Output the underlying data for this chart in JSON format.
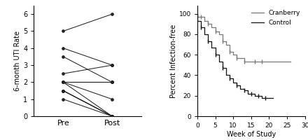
{
  "left_chart": {
    "ylabel": "6-month UTI Rate",
    "xlabel_pre": "Pre",
    "xlabel_post": "Post",
    "ylim": [
      0,
      6.5
    ],
    "yticks": [
      0,
      1,
      2,
      3,
      4,
      5,
      6
    ],
    "pairs": [
      [
        5.0,
        6.0
      ],
      [
        4.0,
        3.0
      ],
      [
        3.5,
        2.0
      ],
      [
        2.5,
        3.0
      ],
      [
        2.0,
        2.0
      ],
      [
        2.0,
        2.0
      ],
      [
        2.0,
        2.0
      ],
      [
        2.0,
        1.0
      ],
      [
        2.0,
        0.0
      ],
      [
        1.5,
        0.0
      ],
      [
        1.5,
        0.0
      ],
      [
        1.5,
        0.0
      ],
      [
        1.0,
        0.0
      ]
    ],
    "line_color": "#222222",
    "marker_color": "#222222"
  },
  "right_chart": {
    "ylabel": "Percent Infection-free",
    "xlabel": "Week of Study",
    "ylim": [
      0,
      108
    ],
    "yticks": [
      0,
      20,
      40,
      60,
      80,
      100
    ],
    "xlim": [
      0,
      30
    ],
    "xticks": [
      0,
      5,
      10,
      15,
      20,
      25,
      30
    ],
    "cranberry_x": [
      0,
      1,
      2,
      3,
      4,
      5,
      6,
      7,
      8,
      9,
      10,
      11,
      12,
      13,
      14,
      15,
      16,
      17,
      18,
      26
    ],
    "cranberry_y": [
      97,
      97,
      93,
      90,
      87,
      83,
      80,
      73,
      70,
      63,
      60,
      57,
      57,
      53,
      53,
      53,
      53,
      53,
      53,
      53
    ],
    "control_x": [
      0,
      1,
      2,
      3,
      4,
      5,
      6,
      7,
      8,
      9,
      10,
      11,
      12,
      13,
      14,
      15,
      16,
      17,
      18,
      19,
      21
    ],
    "control_y": [
      93,
      87,
      80,
      73,
      67,
      60,
      53,
      47,
      40,
      37,
      33,
      30,
      27,
      25,
      22,
      22,
      20,
      20,
      18,
      18,
      18
    ],
    "cranberry_tick_x": [
      1,
      3,
      5,
      7,
      9,
      11,
      13,
      16,
      18
    ],
    "cranberry_tick_y": [
      97,
      90,
      83,
      73,
      63,
      57,
      53,
      53,
      53
    ],
    "control_tick_x": [
      1,
      3,
      5,
      7,
      9,
      11,
      13,
      15,
      17,
      19
    ],
    "control_tick_y": [
      87,
      73,
      60,
      47,
      37,
      30,
      25,
      22,
      20,
      18
    ],
    "cranberry_color": "#777777",
    "control_color": "#111111",
    "legend_cranberry": "Cranberry",
    "legend_control": "Control"
  }
}
